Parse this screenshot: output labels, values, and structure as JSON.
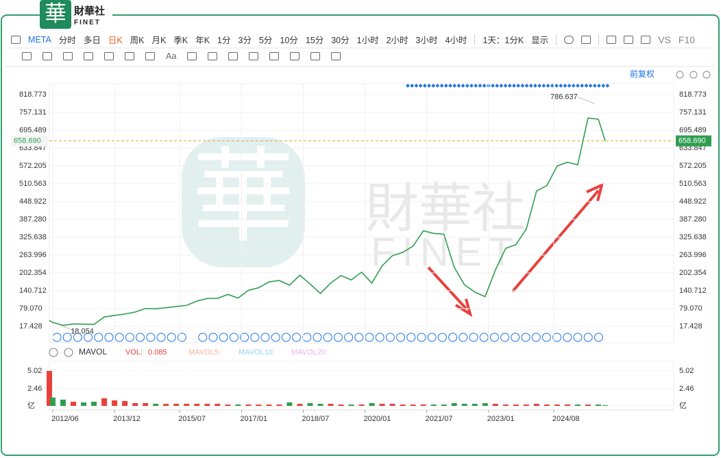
{
  "header": {
    "logo_char": "華",
    "name": "財華社",
    "latin": "FINET"
  },
  "toolbar": {
    "symbol": "META",
    "periods": [
      "分时",
      "多日",
      "日K",
      "周K",
      "月K",
      "季K",
      "年K",
      "1分",
      "3分",
      "5分",
      "10分",
      "15分",
      "30分",
      "1小时",
      "2小时",
      "3小时",
      "4小时"
    ],
    "active_period": 2,
    "interval": "1天：1分K",
    "display": "显示",
    "compare": "VS",
    "info": "F10"
  },
  "drawing_tools": {
    "text_tool": "Aa"
  },
  "adjust": "前复权",
  "watermark": {
    "logo_char": "華",
    "name": "財華社",
    "latin": "FINET"
  },
  "indicator": {
    "name": "MAVOL",
    "vol_label": "VOL:",
    "vol_value": 0.085,
    "ma": [
      "MAVOL5:",
      "MAVOL10:",
      "MAVOL20:"
    ]
  },
  "chart_data": [
    {
      "type": "line",
      "x": [
        "2012/05",
        "2012/06",
        "2012/09",
        "2012/12",
        "2013/03",
        "2013/06",
        "2013/09",
        "2013/12",
        "2014/03",
        "2014/06",
        "2014/09",
        "2014/12",
        "2015/03",
        "2015/06",
        "2015/09",
        "2015/12",
        "2016/03",
        "2016/06",
        "2016/09",
        "2016/12",
        "2017/03",
        "2017/06",
        "2017/09",
        "2017/12",
        "2018/03",
        "2018/06",
        "2018/09",
        "2018/12",
        "2019/03",
        "2019/06",
        "2019/09",
        "2019/12",
        "2020/03",
        "2020/06",
        "2020/09",
        "2020/12",
        "2021/03",
        "2021/06",
        "2021/09",
        "2021/12",
        "2022/03",
        "2022/06",
        "2022/09",
        "2022/12",
        "2023/03",
        "2023/06",
        "2023/09",
        "2023/12",
        "2024/03",
        "2024/06",
        "2024/09",
        "2024/12",
        "2025/03",
        "2025/06",
        "2025/09",
        "2025/11"
      ],
      "values": [
        38,
        31,
        21,
        26,
        25,
        24,
        50,
        55,
        60,
        67,
        79,
        78,
        82,
        86,
        90,
        105,
        114,
        114,
        128,
        115,
        142,
        151,
        171,
        176,
        160,
        194,
        164,
        131,
        167,
        193,
        178,
        205,
        167,
        227,
        262,
        273,
        295,
        348,
        339,
        336,
        222,
        161,
        136,
        120,
        212,
        287,
        300,
        354,
        486,
        504,
        572,
        585,
        576,
        738,
        734,
        658.69
      ],
      "color": "#2e9e4f",
      "up_color": "#e8413c",
      "down_color": "#2e9e4f",
      "xlim": [
        "2012/05",
        "2025/12"
      ],
      "ylim": [
        -39.5,
        856.7
      ],
      "yticks": [
        818.773,
        757.131,
        695.489,
        633.847,
        572.205,
        510.563,
        448.922,
        {
          "value": 387.28,
          "label": "387.280"
        },
        325.638,
        263.996,
        202.354,
        140.712,
        {
          "value": 79.07,
          "label": "79.070"
        },
        17.428
      ],
      "grid": true,
      "last_price": {
        "value": 658.69,
        "label": "658.690"
      },
      "annotations": [
        {
          "x": "2025/08",
          "value": 786.637
        },
        {
          "x": "2012/09",
          "value": 18.054
        }
      ]
    },
    {
      "type": "bar",
      "x": [
        "2012/05",
        "2012/06",
        "2012/09",
        "2012/12",
        "2013/03",
        "2013/06",
        "2013/09",
        "2013/12",
        "2014/03",
        "2014/06",
        "2014/09",
        "2014/12",
        "2015/03",
        "2015/06",
        "2015/09",
        "2015/12",
        "2016/03",
        "2016/06",
        "2016/09",
        "2016/12",
        "2017/03",
        "2017/06",
        "2017/09",
        "2017/12",
        "2018/03",
        "2018/06",
        "2018/09",
        "2018/12",
        "2019/03",
        "2019/06",
        "2019/09",
        "2019/12",
        "2020/03",
        "2020/06",
        "2020/09",
        "2020/12",
        "2021/03",
        "2021/06",
        "2021/09",
        "2021/12",
        "2022/03",
        "2022/06",
        "2022/09",
        "2022/12",
        "2023/03",
        "2023/06",
        "2023/09",
        "2023/12",
        "2024/03",
        "2024/06",
        "2024/09",
        "2024/12",
        "2025/03",
        "2025/06",
        "2025/09",
        "2025/11"
      ],
      "values": [
        5.02,
        1.2,
        0.9,
        0.6,
        0.5,
        0.6,
        1.1,
        0.8,
        0.7,
        0.4,
        0.4,
        0.3,
        0.3,
        0.3,
        0.3,
        0.3,
        0.3,
        0.3,
        0.2,
        0.2,
        0.2,
        0.2,
        0.2,
        0.2,
        0.5,
        0.3,
        0.4,
        0.3,
        0.3,
        0.2,
        0.2,
        0.2,
        0.4,
        0.3,
        0.3,
        0.2,
        0.2,
        0.2,
        0.2,
        0.2,
        0.4,
        0.3,
        0.3,
        0.4,
        0.3,
        0.2,
        0.2,
        0.2,
        0.3,
        0.2,
        0.2,
        0.2,
        0.2,
        0.2,
        0.2,
        0.1
      ],
      "up_color": "#e8413c",
      "down_color": "#2e9e4f",
      "xlim": [
        "2012/05",
        "2025/12"
      ],
      "ylim": [
        0,
        6.4
      ],
      "yticks": [
        5.02,
        2.46,
        {
          "value": 0,
          "label": "亿"
        }
      ],
      "xticks": [
        "2012/06",
        "2013/12",
        "2015/07",
        "2017/01",
        "2018/07",
        "2020/01",
        "2021/07",
        "2023/01",
        "2024/08"
      ]
    }
  ]
}
